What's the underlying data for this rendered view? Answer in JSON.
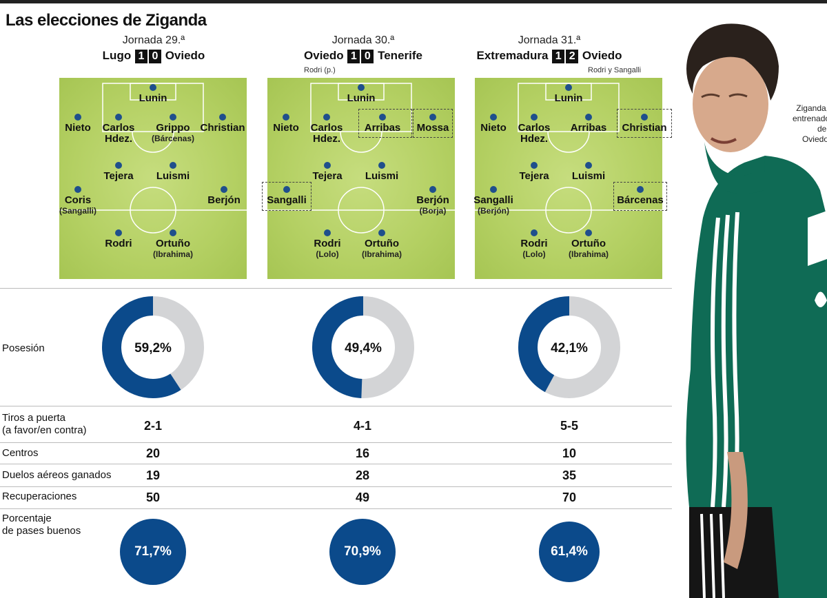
{
  "title": "Las elecciones de Ziganda",
  "caption": [
    "Ziganda,",
    "entrenador",
    "del Oviedo"
  ],
  "matches": [
    {
      "jornada": "Jornada 29.ª",
      "home": "Lugo",
      "home_goals": "1",
      "away_goals": "0",
      "away": "Oviedo",
      "scorers": "",
      "players": [
        {
          "name": "Lunin",
          "sub": ""
        },
        {
          "name": "Nieto",
          "sub": ""
        },
        {
          "name": "Carlos",
          "name2": "Hdez.",
          "sub": ""
        },
        {
          "name": "Grippo",
          "sub": "(Bárcenas)"
        },
        {
          "name": "Christian",
          "sub": ""
        },
        {
          "name": "Tejera",
          "sub": ""
        },
        {
          "name": "Luismi",
          "sub": ""
        },
        {
          "name": "Coris",
          "sub": "(Sangalli)"
        },
        {
          "name": "Berjón",
          "sub": ""
        },
        {
          "name": "Rodri",
          "sub": ""
        },
        {
          "name": "Ortuño",
          "sub": "(Ibrahima)"
        }
      ]
    },
    {
      "jornada": "Jornada 30.ª",
      "home": "Oviedo",
      "home_goals": "1",
      "away_goals": "0",
      "away": "Tenerife",
      "scorers": "Rodri (p.)",
      "players": [
        {
          "name": "Lunin",
          "sub": ""
        },
        {
          "name": "Nieto",
          "sub": ""
        },
        {
          "name": "Carlos",
          "name2": "Hdez.",
          "sub": ""
        },
        {
          "name": "Arribas",
          "sub": ""
        },
        {
          "name": "Mossa",
          "sub": ""
        },
        {
          "name": "Tejera",
          "sub": ""
        },
        {
          "name": "Luismi",
          "sub": ""
        },
        {
          "name": "Sangalli",
          "sub": ""
        },
        {
          "name": "Berjón",
          "sub": "(Borja)"
        },
        {
          "name": "Rodri",
          "sub": "(Lolo)"
        },
        {
          "name": "Ortuño",
          "sub": "(Ibrahima)"
        }
      ]
    },
    {
      "jornada": "Jornada 31.ª",
      "home": "Extremadura",
      "home_goals": "1",
      "away_goals": "2",
      "away": "Oviedo",
      "scorers": "Rodri y Sangalli",
      "players": [
        {
          "name": "Lunin",
          "sub": ""
        },
        {
          "name": "Nieto",
          "sub": ""
        },
        {
          "name": "Carlos",
          "name2": "Hdez.",
          "sub": ""
        },
        {
          "name": "Arribas",
          "sub": ""
        },
        {
          "name": "Christian",
          "sub": ""
        },
        {
          "name": "Tejera",
          "sub": ""
        },
        {
          "name": "Luismi",
          "sub": ""
        },
        {
          "name": "Sangalli",
          "sub": "(Berjón)"
        },
        {
          "name": "Bárcenas",
          "sub": ""
        },
        {
          "name": "Rodri",
          "sub": "(Lolo)"
        },
        {
          "name": "Ortuño",
          "sub": "(Ibrahima)"
        }
      ]
    }
  ],
  "labels": {
    "posesion": "Posesión",
    "tiros_1": "Tiros a puerta",
    "tiros_2": "(a favor/en contra)",
    "centros": "Centros",
    "duelos": "Duelos aéreos ganados",
    "recuperaciones": "Recuperaciones",
    "pases_1": "Porcentaje",
    "pases_2": "de pases buenos"
  },
  "chart_data": {
    "type": "table",
    "categories": [
      "Jornada 29.ª",
      "Jornada 30.ª",
      "Jornada 31.ª"
    ],
    "posesion": {
      "values": [
        59.2,
        49.4,
        42.1
      ],
      "labels": [
        "59,2%",
        "49,4%",
        "42,1%"
      ]
    },
    "tiros_a_puerta": [
      "2-1",
      "4-1",
      "5-5"
    ],
    "centros": [
      "20",
      "16",
      "10"
    ],
    "duelos_aereos_ganados": [
      "19",
      "28",
      "35"
    ],
    "recuperaciones": [
      "50",
      "49",
      "70"
    ],
    "porcentaje_pases_buenos": {
      "values": [
        71.7,
        70.9,
        61.4
      ],
      "labels": [
        "71,7%",
        "70,9%",
        "61,4%"
      ]
    },
    "colors": {
      "primary": "#0b4a8b",
      "remainder": "#d3d4d6",
      "pitch": "#b4d063",
      "player": "#1f4f8c"
    }
  }
}
